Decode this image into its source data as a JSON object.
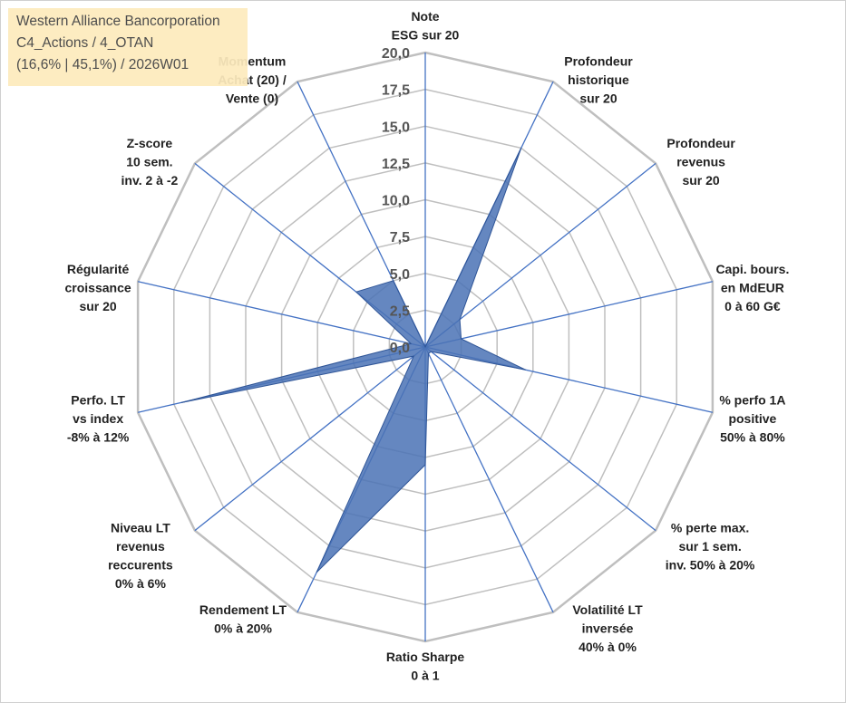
{
  "info": {
    "company": "Western Alliance Bancorporation",
    "category": "C4_Actions / 4_OTAN",
    "stats": "(16,6% | 45,1%) / 2026W01"
  },
  "chart_data": {
    "type": "radar",
    "title": "Western Alliance Bancorporation",
    "rmin": 0,
    "rmax": 20,
    "tick_step": 2.5,
    "tick_labels": [
      "0,0",
      "2,5",
      "5,0",
      "7,5",
      "10,0",
      "12,5",
      "15,0",
      "17,5",
      "20,0"
    ],
    "series_color": "#4a72b5",
    "gridline_color": "#bfbfbf",
    "axis_color": "#4472c4",
    "axes": [
      {
        "label": [
          "Note",
          "ESG sur 20"
        ],
        "value": 0
      },
      {
        "label": [
          "Profondeur",
          "historique",
          "sur 20"
        ],
        "value": 15
      },
      {
        "label": [
          "Profondeur",
          "revenus",
          "sur 20"
        ],
        "value": 3
      },
      {
        "label": [
          "Capi. bours.",
          "en MdEUR",
          "0 à 60 G€"
        ],
        "value": 2.5
      },
      {
        "label": [
          "% perfo 1A",
          "positive",
          "50% à 80%"
        ],
        "value": 7
      },
      {
        "label": [
          "% perte max.",
          "sur 1 sem.",
          "inv. 50% à 20%"
        ],
        "value": 0.5
      },
      {
        "label": [
          "Volatilité LT",
          "inversée",
          "40% à 0%"
        ],
        "value": 0.5
      },
      {
        "label": [
          "Ratio Sharpe",
          "0 à 1"
        ],
        "value": 8
      },
      {
        "label": [
          "Rendement LT",
          "0% à 20%"
        ],
        "value": 17
      },
      {
        "label": [
          "Niveau LT",
          "revenus",
          "reccurents",
          "0% à 6%"
        ],
        "value": 1
      },
      {
        "label": [
          "Perfo. LT",
          "vs index",
          "-8% à 12%"
        ],
        "value": 17
      },
      {
        "label": [
          "Régularité",
          "croissance",
          "sur 20"
        ],
        "value": 1
      },
      {
        "label": [
          "Z-score",
          "10 sem.",
          "inv. 2 à -2"
        ],
        "value": 6
      },
      {
        "label": [
          "Momentum",
          "Achat (20) /",
          "Vente (0)"
        ],
        "value": 5
      }
    ]
  }
}
